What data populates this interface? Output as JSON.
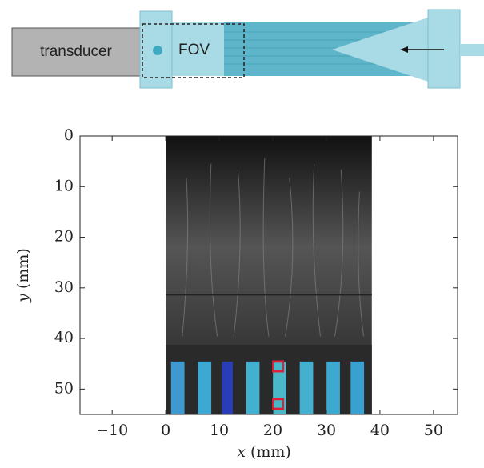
{
  "diagram": {
    "transducer_label": "transducer",
    "fov_label": "FOV"
  },
  "chart_data": {
    "type": "image",
    "xlabel": {
      "symbol": "x",
      "unit": "(mm)"
    },
    "ylabel": {
      "symbol": "y",
      "unit": "(mm)"
    },
    "xlim": [
      -16,
      54.5
    ],
    "ylim": [
      0,
      55
    ],
    "y_inverted": true,
    "xticks": [
      {
        "value": -10,
        "label": "−10"
      },
      0,
      10,
      20,
      30,
      40,
      50
    ],
    "yticks": [
      0,
      10,
      20,
      30,
      40,
      50
    ],
    "extent": {
      "x": [
        0,
        38.5
      ],
      "y": [
        0,
        55
      ]
    }
  }
}
